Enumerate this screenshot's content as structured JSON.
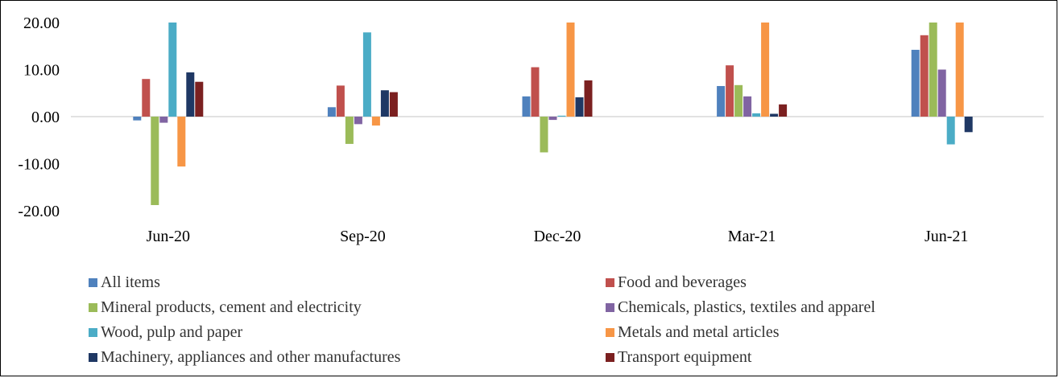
{
  "colors": {
    "axis": "#d9d9d9",
    "text": "#000000"
  },
  "chart_data": {
    "type": "bar",
    "title": "",
    "categories": [
      "Jun-20",
      "Sep-20",
      "Dec-20",
      "Mar-21",
      "Jun-21"
    ],
    "ylim": [
      -20,
      20
    ],
    "yticks": [
      "20.00",
      "10.00",
      "0.00",
      "-10.00",
      "-20.00"
    ],
    "ytick_values": [
      20,
      10,
      0,
      -10,
      -20
    ],
    "grid": false,
    "legend_position": "bottom",
    "series": [
      {
        "name": "All items",
        "color": "#4f81bd",
        "values": [
          -0.8,
          2.0,
          4.3,
          6.5,
          14.2
        ]
      },
      {
        "name": "Food and beverages",
        "color": "#c0504d",
        "values": [
          8.0,
          6.6,
          10.5,
          10.9,
          17.3
        ]
      },
      {
        "name": "Mineral products, cement and electricity",
        "color": "#9bbb59",
        "values": [
          -18.8,
          -5.8,
          -7.6,
          6.7,
          20.0
        ]
      },
      {
        "name": "Chemicals, plastics, textiles and apparel",
        "color": "#8064a2",
        "values": [
          -1.3,
          -1.6,
          -0.7,
          4.3,
          10.0
        ]
      },
      {
        "name": "Wood, pulp and paper",
        "color": "#4bacc6",
        "values": [
          20.0,
          17.9,
          0.2,
          0.7,
          -5.9
        ]
      },
      {
        "name": "Metals and metal articles",
        "color": "#f79646",
        "values": [
          -10.6,
          -1.9,
          20.0,
          20.0,
          20.0
        ]
      },
      {
        "name": "Machinery, appliances and other manufactures",
        "color": "#1f3864",
        "values": [
          9.4,
          5.6,
          4.1,
          0.6,
          -3.3
        ]
      },
      {
        "name": "Transport equipment",
        "color": "#7b2020",
        "values": [
          7.4,
          5.2,
          7.7,
          2.6,
          0.0
        ]
      }
    ]
  }
}
